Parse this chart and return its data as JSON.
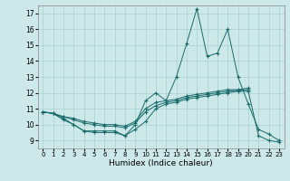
{
  "xlabel": "Humidex (Indice chaleur)",
  "background_color": "#cce8e8",
  "grid_color": "#a8d0d0",
  "line_color": "#1a6b6b",
  "xlim": [
    -0.5,
    23.5
  ],
  "ylim": [
    8.5,
    17.5
  ],
  "yticks": [
    9,
    10,
    11,
    12,
    13,
    14,
    15,
    16,
    17
  ],
  "xticks": [
    0,
    1,
    2,
    3,
    4,
    5,
    6,
    7,
    8,
    9,
    10,
    11,
    12,
    13,
    14,
    15,
    16,
    17,
    18,
    19,
    20,
    21,
    22,
    23
  ],
  "series": [
    {
      "x": [
        0,
        1,
        2,
        3,
        4,
        5,
        6,
        7,
        8,
        9,
        10,
        11,
        12,
        13,
        14,
        15,
        16,
        17,
        18,
        19,
        20,
        21,
        22,
        23
      ],
      "y": [
        10.8,
        10.7,
        10.3,
        10.0,
        9.6,
        9.6,
        9.6,
        9.6,
        9.3,
        10.0,
        11.5,
        12.0,
        11.5,
        13.0,
        15.1,
        17.3,
        14.3,
        14.5,
        16.0,
        13.0,
        11.3,
        9.7,
        9.4,
        9.0
      ]
    },
    {
      "x": [
        0,
        1,
        2,
        3,
        4,
        5,
        6,
        7,
        8,
        9,
        10,
        11,
        12,
        13,
        14,
        15,
        16,
        17,
        18,
        19,
        20
      ],
      "y": [
        10.8,
        10.7,
        10.5,
        10.4,
        10.2,
        10.1,
        10.0,
        10.0,
        9.9,
        10.2,
        11.0,
        11.4,
        11.5,
        11.6,
        11.8,
        11.9,
        12.0,
        12.1,
        12.2,
        12.2,
        12.3
      ]
    },
    {
      "x": [
        0,
        1,
        2,
        3,
        4,
        5,
        6,
        7,
        8,
        9,
        10,
        11,
        12,
        13,
        14,
        15,
        16,
        17,
        18,
        19,
        20
      ],
      "y": [
        10.8,
        10.7,
        10.5,
        10.3,
        10.1,
        10.0,
        9.9,
        9.9,
        9.8,
        10.1,
        10.8,
        11.2,
        11.4,
        11.5,
        11.7,
        11.8,
        11.9,
        12.0,
        12.1,
        12.15,
        12.2
      ]
    },
    {
      "x": [
        0,
        1,
        2,
        3,
        4,
        5,
        6,
        7,
        8,
        9,
        10,
        11,
        12,
        13,
        14,
        15,
        16,
        17,
        18,
        19,
        20,
        21,
        22,
        23
      ],
      "y": [
        10.8,
        10.7,
        10.4,
        10.0,
        9.6,
        9.5,
        9.5,
        9.5,
        9.3,
        9.7,
        10.2,
        11.0,
        11.3,
        11.4,
        11.6,
        11.7,
        11.8,
        11.9,
        12.0,
        12.1,
        12.1,
        9.3,
        9.0,
        8.9
      ]
    }
  ]
}
